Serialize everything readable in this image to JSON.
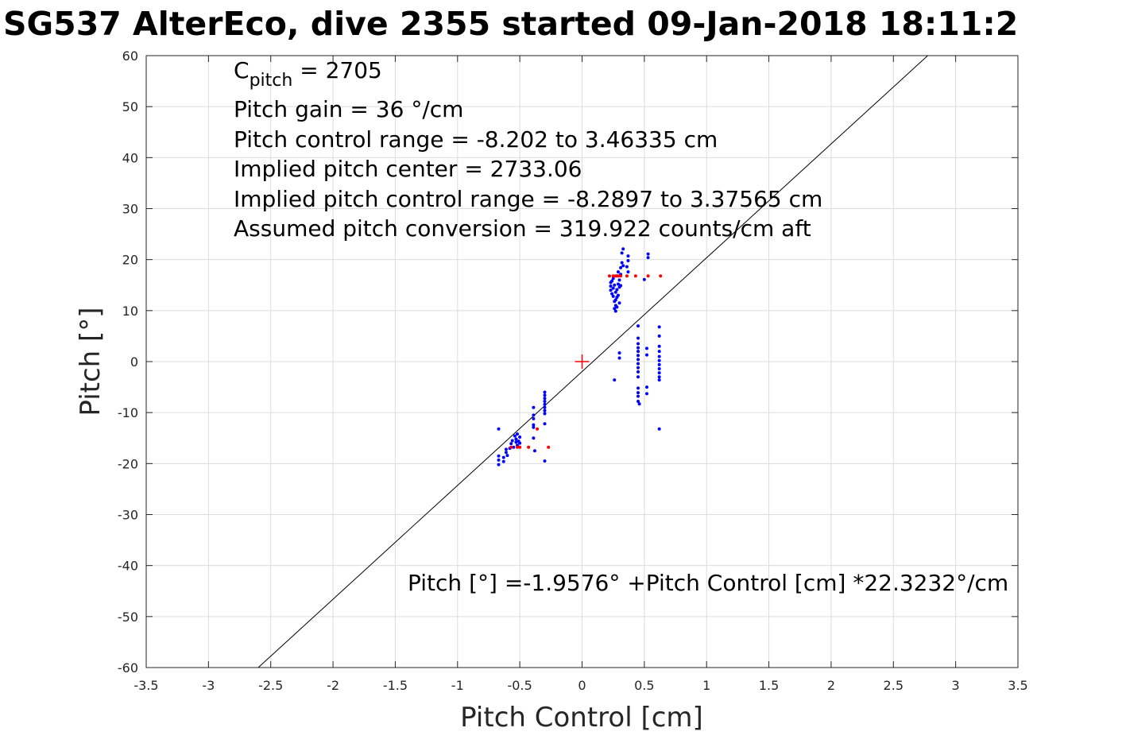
{
  "title": "SG537 AlterEco, dive 2355 started 09-Jan-2018 18:11:2",
  "chart_data": {
    "type": "scatter",
    "xlabel": "Pitch Control [cm]",
    "ylabel": "Pitch [°]",
    "xlim": [
      -3.5,
      3.5
    ],
    "ylim": [
      -60,
      60
    ],
    "xticks": [
      -3.5,
      -3,
      -2.5,
      -2,
      -1.5,
      -1,
      -0.5,
      0,
      0.5,
      1,
      1.5,
      2,
      2.5,
      3,
      3.5
    ],
    "xtick_labels": [
      "-3.5",
      "-3",
      "-2.5",
      "-2",
      "-1.5",
      "-1",
      "-0.5",
      "0",
      "0.5",
      "1",
      "1.5",
      "2",
      "2.5",
      "3",
      "3.5"
    ],
    "yticks": [
      -60,
      -50,
      -40,
      -30,
      -20,
      -10,
      0,
      10,
      20,
      30,
      40,
      50,
      60
    ],
    "ytick_labels": [
      "-60",
      "-50",
      "-40",
      "-30",
      "-20",
      "-10",
      "0",
      "10",
      "20",
      "30",
      "40",
      "50",
      "60"
    ],
    "grid": true,
    "fit_line": {
      "intercept": -1.9576,
      "slope": 22.3232,
      "color": "#000000"
    },
    "center_marker": {
      "x": 0,
      "y": 0,
      "color": "#ff0000"
    },
    "annotations": {
      "c_pitch_main": "C",
      "c_pitch_sub": "pitch",
      "c_pitch_value": " = 2705",
      "lines": [
        "Pitch gain = 36 °/cm",
        "Pitch control range = -8.202 to 3.46335 cm",
        "Implied pitch center = 2733.06",
        "Implied pitch control range = -8.2897 to 3.37565 cm",
        "Assumed pitch conversion = 319.922 counts/cm aft"
      ],
      "fit_equation": "Pitch [°] =-1.9576° +Pitch Control [cm] *22.3232°/cm"
    },
    "series": [
      {
        "color": "#0000ff",
        "points": [
          [
            -0.67,
            -13.2
          ],
          [
            -0.67,
            -18.5
          ],
          [
            -0.67,
            -19.3
          ],
          [
            -0.67,
            -20.2
          ],
          [
            -0.63,
            -18.8
          ],
          [
            -0.63,
            -19.6
          ],
          [
            -0.61,
            -17.2
          ],
          [
            -0.61,
            -17.8
          ],
          [
            -0.6,
            -18.4
          ],
          [
            -0.58,
            -17.0
          ],
          [
            -0.57,
            -16.1
          ],
          [
            -0.56,
            -15.5
          ],
          [
            -0.55,
            -16.8
          ],
          [
            -0.54,
            -14.6
          ],
          [
            -0.53,
            -15.2
          ],
          [
            -0.53,
            -15.8
          ],
          [
            -0.52,
            -16.4
          ],
          [
            -0.52,
            -14.2
          ],
          [
            -0.51,
            -15.6
          ],
          [
            -0.5,
            -16.0
          ],
          [
            -0.5,
            -14.8
          ],
          [
            -0.39,
            -9.0
          ],
          [
            -0.39,
            -10.5
          ],
          [
            -0.39,
            -11.2
          ],
          [
            -0.39,
            -12.4
          ],
          [
            -0.39,
            -12.9
          ],
          [
            -0.39,
            -15.0
          ],
          [
            -0.38,
            -17.5
          ],
          [
            -0.3,
            -6.0
          ],
          [
            -0.3,
            -6.6
          ],
          [
            -0.3,
            -7.2
          ],
          [
            -0.3,
            -7.8
          ],
          [
            -0.3,
            -8.4
          ],
          [
            -0.3,
            -9.0
          ],
          [
            -0.3,
            -9.6
          ],
          [
            -0.3,
            -10.2
          ],
          [
            -0.3,
            -12.2
          ],
          [
            -0.3,
            -19.5
          ],
          [
            0.23,
            15.5
          ],
          [
            0.23,
            14.8
          ],
          [
            0.23,
            14.0
          ],
          [
            0.24,
            13.3
          ],
          [
            0.24,
            15.8
          ],
          [
            0.25,
            16.3
          ],
          [
            0.25,
            14.4
          ],
          [
            0.25,
            12.8
          ],
          [
            0.26,
            11.8
          ],
          [
            0.26,
            10.4
          ],
          [
            0.26,
            15.0
          ],
          [
            0.27,
            13.6
          ],
          [
            0.27,
            12.1
          ],
          [
            0.27,
            11.0
          ],
          [
            0.27,
            9.9
          ],
          [
            0.28,
            16.8
          ],
          [
            0.28,
            14.1
          ],
          [
            0.28,
            12.6
          ],
          [
            0.28,
            10.7
          ],
          [
            0.29,
            17.6
          ],
          [
            0.29,
            15.2
          ],
          [
            0.29,
            13.0
          ],
          [
            0.3,
            16.0
          ],
          [
            0.3,
            14.6
          ],
          [
            0.3,
            11.5
          ],
          [
            0.31,
            18.4
          ],
          [
            0.31,
            17.1
          ],
          [
            0.31,
            14.9
          ],
          [
            0.32,
            19.4
          ],
          [
            0.32,
            21.3
          ],
          [
            0.33,
            22.1
          ],
          [
            0.33,
            18.8
          ],
          [
            0.3,
            1.7
          ],
          [
            0.3,
            0.7
          ],
          [
            0.26,
            -3.6
          ],
          [
            0.36,
            18.6
          ],
          [
            0.37,
            17.6
          ],
          [
            0.37,
            19.8
          ],
          [
            0.37,
            20.7
          ],
          [
            0.45,
            7.0
          ],
          [
            0.45,
            4.6
          ],
          [
            0.45,
            3.5
          ],
          [
            0.45,
            2.7
          ],
          [
            0.45,
            2.0
          ],
          [
            0.45,
            1.2
          ],
          [
            0.45,
            0.4
          ],
          [
            0.45,
            -0.4
          ],
          [
            0.45,
            -1.2
          ],
          [
            0.45,
            -2.0
          ],
          [
            0.45,
            -3.0
          ],
          [
            0.45,
            -5.2
          ],
          [
            0.45,
            -6.1
          ],
          [
            0.45,
            -6.8
          ],
          [
            0.45,
            -7.8
          ],
          [
            0.46,
            -8.3
          ],
          [
            0.5,
            16.1
          ],
          [
            0.52,
            2.6
          ],
          [
            0.52,
            1.3
          ],
          [
            0.52,
            -5.0
          ],
          [
            0.52,
            -6.3
          ],
          [
            0.53,
            20.4
          ],
          [
            0.53,
            21.1
          ],
          [
            0.62,
            6.8
          ],
          [
            0.62,
            5.0
          ],
          [
            0.62,
            3.0
          ],
          [
            0.62,
            2.0
          ],
          [
            0.62,
            1.0
          ],
          [
            0.62,
            0.2
          ],
          [
            0.62,
            -0.6
          ],
          [
            0.62,
            -1.4
          ],
          [
            0.62,
            -2.2
          ],
          [
            0.62,
            -3.0
          ],
          [
            0.62,
            -3.6
          ],
          [
            0.62,
            -13.2
          ]
        ]
      },
      {
        "color": "#ff0000",
        "points": [
          [
            -0.57,
            -16.8
          ],
          [
            -0.52,
            -16.8
          ],
          [
            -0.5,
            -16.8
          ],
          [
            -0.43,
            -16.8
          ],
          [
            -0.36,
            -13.2
          ],
          [
            -0.27,
            -16.8
          ],
          [
            0.22,
            16.8
          ],
          [
            0.25,
            16.8
          ],
          [
            0.27,
            16.8
          ],
          [
            0.29,
            16.8
          ],
          [
            0.31,
            16.8
          ],
          [
            0.36,
            16.8
          ],
          [
            0.43,
            16.8
          ],
          [
            0.53,
            16.8
          ],
          [
            0.63,
            16.8
          ]
        ]
      }
    ]
  }
}
